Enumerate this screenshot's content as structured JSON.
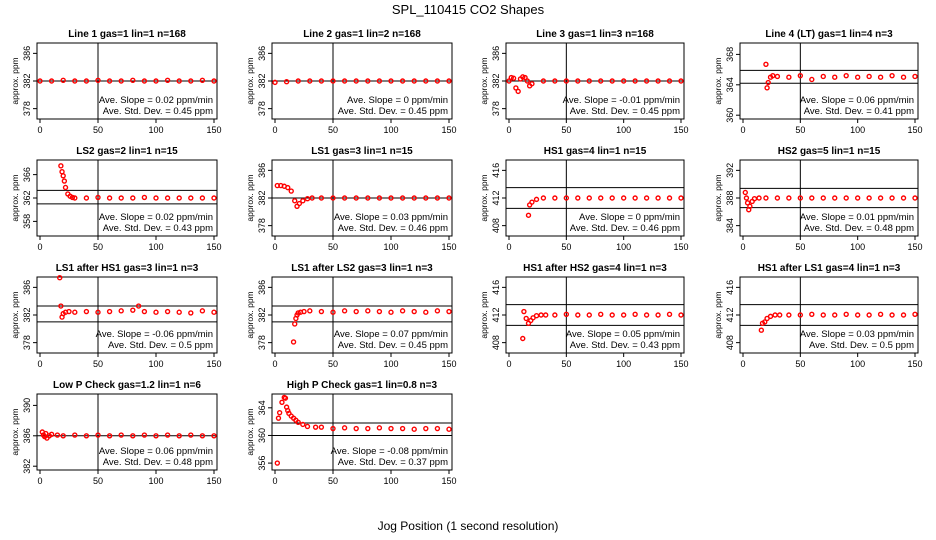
{
  "figure": {
    "title": "SPL_110415  CO2 Shapes",
    "xlabel": "Jog Position (1 second resolution)"
  },
  "chart_data": [
    {
      "type": "scatter",
      "title": "Line 1 gas=1 lin=1 n=168",
      "ylabel": "approx. ppm",
      "xlim": [
        0,
        150
      ],
      "ylim": [
        376.5,
        387.5
      ],
      "xticks": [
        0,
        50,
        100,
        150
      ],
      "yticks": [
        378,
        382,
        386
      ],
      "hlines": [
        382
      ],
      "vline": 50,
      "slope_text": "Ave. Slope = 0.02  ppm/min",
      "std_text": "Ave. Std. Dev. = 0.45  ppm",
      "series": [
        {
          "x": [
            0,
            10,
            20,
            30,
            40,
            50,
            60,
            70,
            80,
            90,
            100,
            110,
            120,
            130,
            140,
            150
          ],
          "y": [
            382.0,
            382.0,
            382.1,
            382.0,
            382.0,
            382.1,
            382.0,
            382.0,
            382.1,
            382.0,
            382.0,
            382.1,
            382.0,
            382.0,
            382.1,
            382.0
          ]
        }
      ]
    },
    {
      "type": "scatter",
      "title": "Line 2 gas=1 lin=2 n=168",
      "ylabel": "approx. ppm",
      "xlim": [
        0,
        150
      ],
      "ylim": [
        376.5,
        387.5
      ],
      "xticks": [
        0,
        50,
        100,
        150
      ],
      "yticks": [
        378,
        382,
        386
      ],
      "hlines": [
        382
      ],
      "vline": 50,
      "slope_text": "Ave. Slope = 0  ppm/min",
      "std_text": "Ave. Std. Dev. = 0.45  ppm",
      "series": [
        {
          "x": [
            0,
            10,
            20,
            30,
            40,
            50,
            60,
            70,
            80,
            90,
            100,
            110,
            120,
            130,
            140,
            150
          ],
          "y": [
            381.8,
            381.9,
            382.0,
            382.0,
            382.0,
            382.0,
            382.0,
            382.0,
            382.0,
            382.0,
            382.0,
            382.0,
            382.0,
            382.0,
            382.0,
            382.0
          ]
        }
      ]
    },
    {
      "type": "scatter",
      "title": "Line 3 gas=1 lin=3 n=168",
      "ylabel": "approx. ppm",
      "xlim": [
        0,
        150
      ],
      "ylim": [
        376.5,
        387.5
      ],
      "xticks": [
        0,
        50,
        100,
        150
      ],
      "yticks": [
        378,
        382,
        386
      ],
      "hlines": [
        382
      ],
      "vline": 50,
      "slope_text": "Ave. Slope = -0.01  ppm/min",
      "std_text": "Ave. Std. Dev. = 0.45  ppm",
      "series": [
        {
          "x": [
            0,
            2,
            4,
            6,
            8,
            10,
            12,
            14,
            16,
            18,
            20,
            30,
            40,
            50,
            60,
            70,
            80,
            90,
            100,
            110,
            120,
            130,
            140,
            150
          ],
          "y": [
            382.0,
            382.5,
            382.4,
            381.0,
            380.5,
            382.3,
            382.6,
            382.5,
            382.0,
            381.3,
            381.6,
            382.0,
            382.0,
            382.0,
            382.0,
            382.0,
            382.0,
            382.0,
            382.0,
            382.0,
            382.0,
            382.0,
            382.0,
            382.0
          ]
        }
      ]
    },
    {
      "type": "scatter",
      "title": "Line 4 (LT) gas=1 lin=4 n=3",
      "ylabel": "approx. ppm",
      "xlim": [
        0,
        150
      ],
      "ylim": [
        359.5,
        369.5
      ],
      "xticks": [
        0,
        50,
        100,
        150
      ],
      "yticks": [
        360,
        364,
        368
      ],
      "hlines": [
        364.2,
        365.9
      ],
      "vline": 50,
      "slope_text": "Ave. Slope = 0.06  ppm/min",
      "std_text": "Ave. Std. Dev. = 0.41  ppm",
      "series": [
        {
          "x": [
            20,
            21,
            22,
            24,
            26,
            30,
            40,
            50,
            60,
            70,
            80,
            90,
            100,
            110,
            120,
            130,
            140,
            150
          ],
          "y": [
            366.7,
            363.6,
            364.3,
            365.0,
            365.2,
            365.1,
            365.0,
            365.2,
            364.7,
            365.1,
            365.0,
            365.2,
            365.0,
            365.1,
            365.0,
            365.2,
            365.0,
            365.1
          ]
        }
      ]
    },
    {
      "type": "scatter",
      "title": "LS2 gas=2 lin=1 n=15",
      "ylabel": "approx. ppm",
      "xlim": [
        0,
        150
      ],
      "ylim": [
        355.5,
        368.5
      ],
      "xticks": [
        0,
        50,
        100,
        150
      ],
      "yticks": [
        358,
        362,
        366
      ],
      "hlines": [
        361,
        363.3
      ],
      "vline": 50,
      "slope_text": "Ave. Slope = 0.02  ppm/min",
      "std_text": "Ave. Std. Dev. = 0.43  ppm",
      "series": [
        {
          "x": [
            18,
            19,
            20,
            21,
            22,
            24,
            26,
            28,
            30,
            40,
            50,
            60,
            70,
            80,
            90,
            100,
            110,
            120,
            130,
            140,
            150
          ],
          "y": [
            367.5,
            366.5,
            365.8,
            364.9,
            363.8,
            362.7,
            362.3,
            362.1,
            362.0,
            362.0,
            362.1,
            362.0,
            362.0,
            362.0,
            362.1,
            362.0,
            362.0,
            362.0,
            362.0,
            362.0,
            362.0
          ]
        }
      ]
    },
    {
      "type": "scatter",
      "title": "LS1 gas=3 lin=1 n=15",
      "ylabel": "approx. ppm",
      "xlim": [
        0,
        150
      ],
      "ylim": [
        376.5,
        387.5
      ],
      "xticks": [
        0,
        50,
        100,
        150
      ],
      "yticks": [
        378,
        382,
        386
      ],
      "hlines": [
        382
      ],
      "vline": 50,
      "slope_text": "Ave. Slope = 0.03  ppm/min",
      "std_text": "Ave. Std. Dev. = 0.46  ppm",
      "series": [
        {
          "x": [
            2,
            5,
            8,
            11,
            14,
            17,
            19,
            21,
            24,
            28,
            32,
            40,
            50,
            60,
            70,
            80,
            90,
            100,
            110,
            120,
            130,
            140,
            150
          ],
          "y": [
            383.8,
            383.8,
            383.7,
            383.5,
            383.0,
            381.6,
            380.8,
            381.2,
            381.6,
            381.9,
            382.0,
            382.0,
            382.0,
            382.0,
            382.0,
            382.0,
            382.0,
            382.0,
            382.0,
            382.0,
            382.0,
            382.0,
            382.0
          ]
        }
      ]
    },
    {
      "type": "scatter",
      "title": "HS1 gas=4 lin=1 n=15",
      "ylabel": "approx. ppm",
      "xlim": [
        0,
        150
      ],
      "ylim": [
        406.5,
        417.5
      ],
      "xticks": [
        0,
        50,
        100,
        150
      ],
      "yticks": [
        408,
        412,
        416
      ],
      "hlines": [
        410.5,
        413.5
      ],
      "vline": 50,
      "slope_text": "Ave. Slope = 0  ppm/min",
      "std_text": "Ave. Std. Dev. = 0.46  ppm",
      "series": [
        {
          "x": [
            17,
            18,
            20,
            24,
            30,
            40,
            50,
            60,
            70,
            80,
            90,
            100,
            110,
            120,
            130,
            140,
            150
          ],
          "y": [
            409.5,
            411.0,
            411.4,
            411.8,
            412.0,
            412.0,
            412.0,
            412.0,
            412.0,
            412.0,
            412.0,
            412.0,
            412.0,
            412.0,
            412.0,
            412.0,
            412.0
          ]
        }
      ]
    },
    {
      "type": "scatter",
      "title": "HS2 gas=5 lin=1 n=15",
      "ylabel": "approx. ppm",
      "xlim": [
        0,
        150
      ],
      "ylim": [
        382.5,
        393.5
      ],
      "xticks": [
        0,
        50,
        100,
        150
      ],
      "yticks": [
        384,
        388,
        392
      ],
      "hlines": [
        386.6,
        389.4
      ],
      "vline": 50,
      "slope_text": "Ave. Slope = 0.01  ppm/min",
      "std_text": "Ave. Std. Dev. = 0.48  ppm",
      "series": [
        {
          "x": [
            2,
            3,
            4,
            5,
            6,
            8,
            10,
            14,
            20,
            30,
            40,
            50,
            60,
            70,
            80,
            90,
            100,
            110,
            120,
            130,
            140,
            150
          ],
          "y": [
            388.8,
            388.0,
            387.3,
            386.3,
            386.8,
            387.5,
            387.9,
            388.0,
            388.0,
            388.0,
            388.0,
            388.0,
            388.0,
            388.0,
            388.0,
            388.0,
            388.0,
            388.0,
            388.0,
            388.0,
            388.0,
            388.0
          ]
        }
      ]
    },
    {
      "type": "scatter",
      "title": "LS1 after HS1 gas=3 lin=1 n=3",
      "ylabel": "approx. ppm",
      "xlim": [
        0,
        150
      ],
      "ylim": [
        376.5,
        387.5
      ],
      "xticks": [
        0,
        50,
        100,
        150
      ],
      "yticks": [
        378,
        382,
        386
      ],
      "hlines": [
        381,
        383.3
      ],
      "vline": 50,
      "slope_text": "Ave. Slope = -0.06  ppm/min",
      "std_text": "Ave. Std. Dev. = 0.5  ppm",
      "series": [
        {
          "x": [
            17,
            18,
            19,
            20,
            22,
            25,
            30,
            40,
            50,
            60,
            70,
            80,
            85,
            90,
            100,
            110,
            120,
            130,
            140,
            150
          ],
          "y": [
            387.4,
            383.3,
            381.7,
            382.2,
            382.4,
            382.5,
            382.4,
            382.5,
            382.4,
            382.5,
            382.6,
            382.7,
            383.3,
            382.5,
            382.4,
            382.5,
            382.4,
            382.3,
            382.6,
            382.4
          ]
        }
      ]
    },
    {
      "type": "scatter",
      "title": "LS1 after LS2 gas=3 lin=1 n=3",
      "ylabel": "approx. ppm",
      "xlim": [
        0,
        150
      ],
      "ylim": [
        376.5,
        387.5
      ],
      "xticks": [
        0,
        50,
        100,
        150
      ],
      "yticks": [
        378,
        382,
        386
      ],
      "hlines": [
        381,
        383.3
      ],
      "vline": 50,
      "slope_text": "Ave. Slope = 0.07  ppm/min",
      "std_text": "Ave. Std. Dev. = 0.45  ppm",
      "series": [
        {
          "x": [
            16,
            17,
            18,
            19,
            20,
            22,
            25,
            30,
            40,
            50,
            60,
            70,
            80,
            90,
            100,
            110,
            120,
            130,
            140,
            150
          ],
          "y": [
            378.1,
            380.7,
            381.5,
            382.0,
            382.3,
            382.4,
            382.5,
            382.6,
            382.5,
            382.4,
            382.6,
            382.5,
            382.6,
            382.5,
            382.4,
            382.6,
            382.5,
            382.4,
            382.6,
            382.5
          ]
        }
      ]
    },
    {
      "type": "scatter",
      "title": "HS1 after HS2 gas=4 lin=1 n=3",
      "ylabel": "approx. ppm",
      "xlim": [
        0,
        150
      ],
      "ylim": [
        406.5,
        417.5
      ],
      "xticks": [
        0,
        50,
        100,
        150
      ],
      "yticks": [
        408,
        412,
        416
      ],
      "hlines": [
        410.5,
        413.5
      ],
      "vline": 50,
      "slope_text": "Ave. Slope = 0.05  ppm/min",
      "std_text": "Ave. Std. Dev. = 0.43  ppm",
      "series": [
        {
          "x": [
            12,
            13,
            15,
            17,
            19,
            21,
            24,
            28,
            32,
            40,
            50,
            60,
            70,
            80,
            90,
            100,
            110,
            120,
            130,
            140,
            150
          ],
          "y": [
            408.6,
            412.5,
            411.5,
            410.8,
            411.2,
            411.6,
            411.9,
            412.0,
            412.0,
            412.0,
            412.1,
            412.0,
            412.0,
            412.1,
            412.0,
            412.0,
            412.1,
            412.0,
            412.0,
            412.1,
            412.0
          ]
        }
      ]
    },
    {
      "type": "scatter",
      "title": "HS1 after LS1 gas=4 lin=1 n=3",
      "ylabel": "approx. ppm",
      "xlim": [
        0,
        150
      ],
      "ylim": [
        406.5,
        417.5
      ],
      "xticks": [
        0,
        50,
        100,
        150
      ],
      "yticks": [
        408,
        412,
        416
      ],
      "hlines": [
        410.5,
        413.5
      ],
      "vline": 50,
      "slope_text": "Ave. Slope = 0.03  ppm/min",
      "std_text": "Ave. Std. Dev. = 0.5  ppm",
      "series": [
        {
          "x": [
            16,
            17,
            19,
            21,
            24,
            28,
            32,
            40,
            50,
            60,
            70,
            80,
            90,
            100,
            110,
            120,
            130,
            140,
            150
          ],
          "y": [
            409.8,
            410.8,
            411.0,
            411.5,
            411.8,
            412.0,
            412.0,
            412.0,
            412.0,
            412.1,
            412.0,
            412.0,
            412.1,
            412.0,
            412.0,
            412.1,
            412.0,
            412.0,
            412.1
          ]
        }
      ]
    },
    {
      "type": "scatter",
      "title": "Low P Check gas=1.2 lin=1 n=6",
      "ylabel": "approx. ppm",
      "xlim": [
        0,
        150
      ],
      "ylim": [
        381.5,
        391.5
      ],
      "xticks": [
        0,
        50,
        100,
        150
      ],
      "yticks": [
        382,
        386,
        390
      ],
      "hlines": [
        386
      ],
      "vline": 50,
      "slope_text": "Ave. Slope = 0.06  ppm/min",
      "std_text": "Ave. Std. Dev. = 0.48  ppm",
      "series": [
        {
          "x": [
            2,
            3,
            4,
            5,
            6,
            8,
            10,
            15,
            20,
            30,
            40,
            50,
            60,
            70,
            80,
            90,
            100,
            110,
            120,
            130,
            140,
            150
          ],
          "y": [
            386.5,
            386.1,
            385.9,
            386.3,
            385.7,
            386.0,
            386.2,
            386.1,
            386.0,
            386.1,
            386.0,
            386.1,
            386.0,
            386.1,
            386.0,
            386.1,
            386.0,
            386.1,
            386.0,
            386.1,
            386.0,
            386.0
          ]
        }
      ]
    },
    {
      "type": "scatter",
      "title": "High P Check gas=1 lin=0.8 n=3",
      "ylabel": "approx. ppm",
      "xlim": [
        0,
        150
      ],
      "ylim": [
        355.0,
        366.0
      ],
      "xticks": [
        0,
        50,
        100,
        150
      ],
      "yticks": [
        356,
        360,
        364
      ],
      "hlines": [
        360,
        361.8
      ],
      "vline": 50,
      "slope_text": "Ave. Slope = -0.08  ppm/min",
      "std_text": "Ave. Std. Dev. = 0.37  ppm",
      "series": [
        {
          "x": [
            2,
            3,
            4,
            6,
            8,
            9,
            10,
            11,
            12,
            14,
            16,
            18,
            20,
            24,
            28,
            35,
            40,
            50,
            60,
            70,
            80,
            90,
            100,
            110,
            120,
            130,
            140,
            150
          ],
          "y": [
            356.0,
            362.5,
            363.3,
            364.8,
            365.5,
            365.4,
            364.1,
            363.6,
            363.2,
            362.8,
            362.5,
            362.2,
            361.9,
            361.6,
            361.3,
            361.2,
            361.2,
            361.0,
            361.1,
            361.0,
            361.0,
            361.1,
            361.0,
            361.0,
            360.9,
            361.0,
            361.0,
            360.9
          ]
        }
      ]
    }
  ]
}
